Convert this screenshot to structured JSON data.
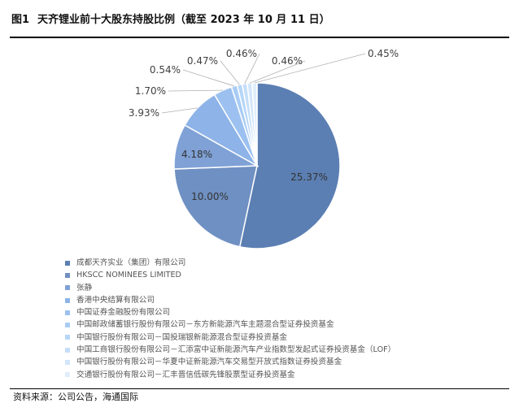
{
  "header": {
    "figure_number": "图1",
    "title": "天齐锂业前十大股东持股比例（截至 2023 年 10 月 11 日）"
  },
  "chart_data": {
    "type": "pie",
    "title": "天齐锂业前十大股东持股比例（截至 2023 年 10 月 11 日）",
    "slices": [
      {
        "label": "成都天齐实业（集团）有限公司",
        "value": 25.37,
        "display": "25.37%",
        "color": "#5b7fb3"
      },
      {
        "label": "HKSCC NOMINEES LIMITED",
        "value": 10.0,
        "display": "10.00%",
        "color": "#6f90c2"
      },
      {
        "label": "张静",
        "value": 4.18,
        "display": "4.18%",
        "color": "#7fa1d6"
      },
      {
        "label": "香港中央结算有限公司",
        "value": 3.93,
        "display": "3.93%",
        "color": "#8db3e8"
      },
      {
        "label": "中国证券金融股份有限公司",
        "value": 1.7,
        "display": "1.70%",
        "color": "#9cc1f0"
      },
      {
        "label": "中国邮政储蓄银行股份有限公司－东方新能源汽车主题混合型证券投资基金",
        "value": 0.54,
        "display": "0.54%",
        "color": "#a9ccf5"
      },
      {
        "label": "中国银行股份有限公司－国投瑞银新能源混合型证券投资基金",
        "value": 0.47,
        "display": "0.47%",
        "color": "#b7d6f8"
      },
      {
        "label": "中国工商银行股份有限公司－汇添富中证新能源汽车产业指数型发起式证券投资基金（LOF）",
        "value": 0.46,
        "display": "0.46%",
        "color": "#c5def9"
      },
      {
        "label": "中国银行股份有限公司－华夏中证新能源汽车交易型开放式指数证券投资基金",
        "value": 0.46,
        "display": "0.46%",
        "color": "#d3e6fb"
      },
      {
        "label": "交通银行股份有限公司－汇丰晋信低碳先锋股票型证券投资基金",
        "value": 0.45,
        "display": "0.45%",
        "color": "#e0eefc"
      }
    ],
    "legend_position": "bottom-left"
  },
  "footer": {
    "source": "资料来源：公司公告，海通国际"
  }
}
